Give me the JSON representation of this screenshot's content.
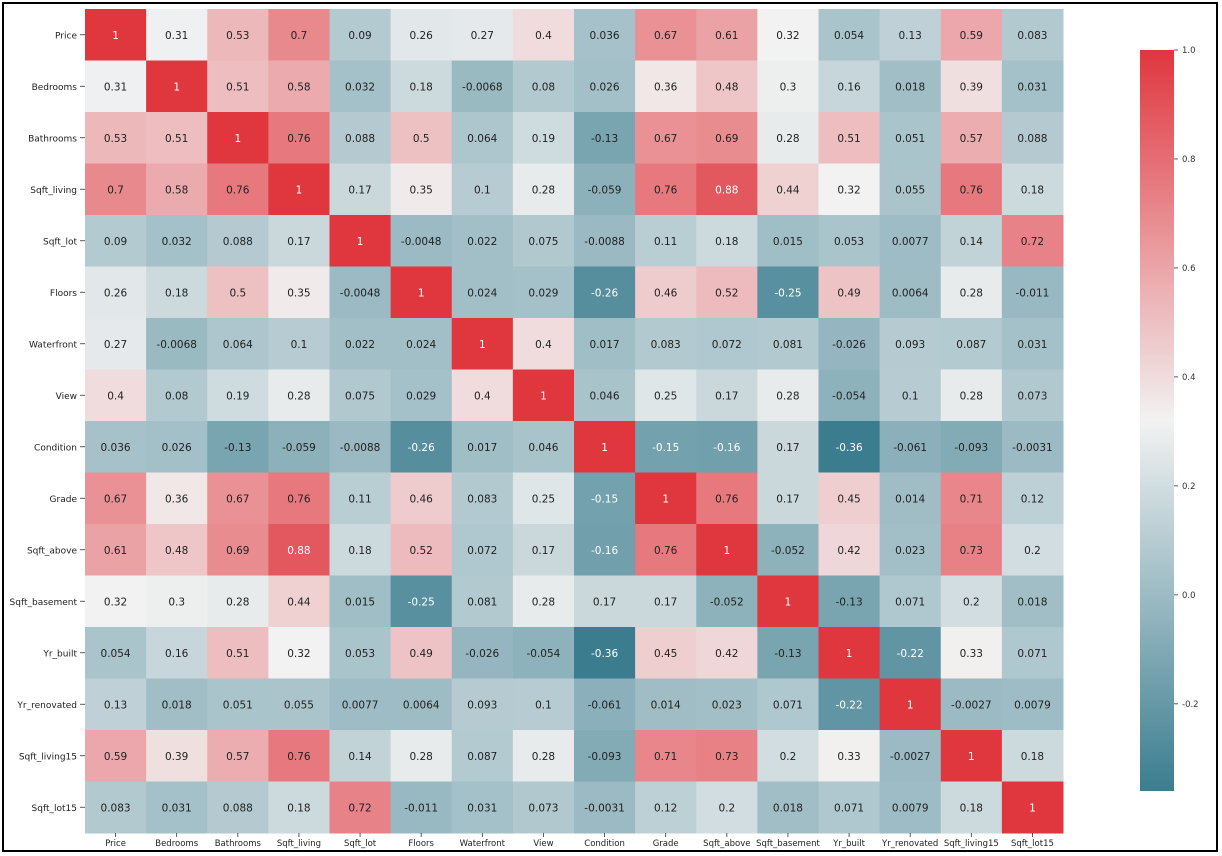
{
  "chart_data": {
    "type": "heatmap",
    "title": "",
    "xlabel": "",
    "ylabel": "",
    "labels": [
      "Price",
      "Bedrooms",
      "Bathrooms",
      "Sqft_living",
      "Sqft_lot",
      "Floors",
      "Waterfront",
      "View",
      "Condition",
      "Grade",
      "Sqft_above",
      "Sqft_basement",
      "Yr_built",
      "Yr_renovated",
      "Sqft_living15",
      "Sqft_lot15"
    ],
    "matrix": [
      [
        "1",
        "0.31",
        "0.53",
        "0.7",
        "0.09",
        "0.26",
        "0.27",
        "0.4",
        "0.036",
        "0.67",
        "0.61",
        "0.32",
        "0.054",
        "0.13",
        "0.59",
        "0.083"
      ],
      [
        "0.31",
        "1",
        "0.51",
        "0.58",
        "0.032",
        "0.18",
        "-0.0068",
        "0.08",
        "0.026",
        "0.36",
        "0.48",
        "0.3",
        "0.16",
        "0.018",
        "0.39",
        "0.031"
      ],
      [
        "0.53",
        "0.51",
        "1",
        "0.76",
        "0.088",
        "0.5",
        "0.064",
        "0.19",
        "-0.13",
        "0.67",
        "0.69",
        "0.28",
        "0.51",
        "0.051",
        "0.57",
        "0.088"
      ],
      [
        "0.7",
        "0.58",
        "0.76",
        "1",
        "0.17",
        "0.35",
        "0.1",
        "0.28",
        "-0.059",
        "0.76",
        "0.88",
        "0.44",
        "0.32",
        "0.055",
        "0.76",
        "0.18"
      ],
      [
        "0.09",
        "0.032",
        "0.088",
        "0.17",
        "1",
        "-0.0048",
        "0.022",
        "0.075",
        "-0.0088",
        "0.11",
        "0.18",
        "0.015",
        "0.053",
        "0.0077",
        "0.14",
        "0.72"
      ],
      [
        "0.26",
        "0.18",
        "0.5",
        "0.35",
        "-0.0048",
        "1",
        "0.024",
        "0.029",
        "-0.26",
        "0.46",
        "0.52",
        "-0.25",
        "0.49",
        "0.0064",
        "0.28",
        "-0.011"
      ],
      [
        "0.27",
        "-0.0068",
        "0.064",
        "0.1",
        "0.022",
        "0.024",
        "1",
        "0.4",
        "0.017",
        "0.083",
        "0.072",
        "0.081",
        "-0.026",
        "0.093",
        "0.087",
        "0.031"
      ],
      [
        "0.4",
        "0.08",
        "0.19",
        "0.28",
        "0.075",
        "0.029",
        "0.4",
        "1",
        "0.046",
        "0.25",
        "0.17",
        "0.28",
        "-0.054",
        "0.1",
        "0.28",
        "0.073"
      ],
      [
        "0.036",
        "0.026",
        "-0.13",
        "-0.059",
        "-0.0088",
        "-0.26",
        "0.017",
        "0.046",
        "1",
        "-0.15",
        "-0.16",
        "0.17",
        "-0.36",
        "-0.061",
        "-0.093",
        "-0.0031"
      ],
      [
        "0.67",
        "0.36",
        "0.67",
        "0.76",
        "0.11",
        "0.46",
        "0.083",
        "0.25",
        "-0.15",
        "1",
        "0.76",
        "0.17",
        "0.45",
        "0.014",
        "0.71",
        "0.12"
      ],
      [
        "0.61",
        "0.48",
        "0.69",
        "0.88",
        "0.18",
        "0.52",
        "0.072",
        "0.17",
        "-0.16",
        "0.76",
        "1",
        "-0.052",
        "0.42",
        "0.023",
        "0.73",
        "0.2"
      ],
      [
        "0.32",
        "0.3",
        "0.28",
        "0.44",
        "0.015",
        "-0.25",
        "0.081",
        "0.28",
        "0.17",
        "0.17",
        "-0.052",
        "1",
        "-0.13",
        "0.071",
        "0.2",
        "0.018"
      ],
      [
        "0.054",
        "0.16",
        "0.51",
        "0.32",
        "0.053",
        "0.49",
        "-0.026",
        "-0.054",
        "-0.36",
        "0.45",
        "0.42",
        "-0.13",
        "1",
        "-0.22",
        "0.33",
        "0.071"
      ],
      [
        "0.13",
        "0.018",
        "0.051",
        "0.055",
        "0.0077",
        "0.0064",
        "0.093",
        "0.1",
        "-0.061",
        "0.014",
        "0.023",
        "0.071",
        "-0.22",
        "1",
        "-0.0027",
        "0.0079"
      ],
      [
        "0.59",
        "0.39",
        "0.57",
        "0.76",
        "0.14",
        "0.28",
        "0.087",
        "0.28",
        "-0.093",
        "0.71",
        "0.73",
        "0.2",
        "0.33",
        "-0.0027",
        "1",
        "0.18"
      ],
      [
        "0.083",
        "0.031",
        "0.088",
        "0.18",
        "0.72",
        "-0.011",
        "0.031",
        "0.073",
        "-0.0031",
        "0.12",
        "0.2",
        "0.018",
        "0.071",
        "0.0079",
        "0.18",
        "1"
      ]
    ],
    "colorbar": {
      "vmin": -0.36,
      "vmax": 1.0,
      "ticks": [
        "1.0",
        "0.8",
        "0.6",
        "0.4",
        "0.2",
        "0.0",
        "-0.2"
      ],
      "colors": {
        "low": "#3b7d8f",
        "center": "#f2f2f2",
        "high": "#e0363e"
      }
    },
    "grid": false,
    "legend": "right"
  }
}
